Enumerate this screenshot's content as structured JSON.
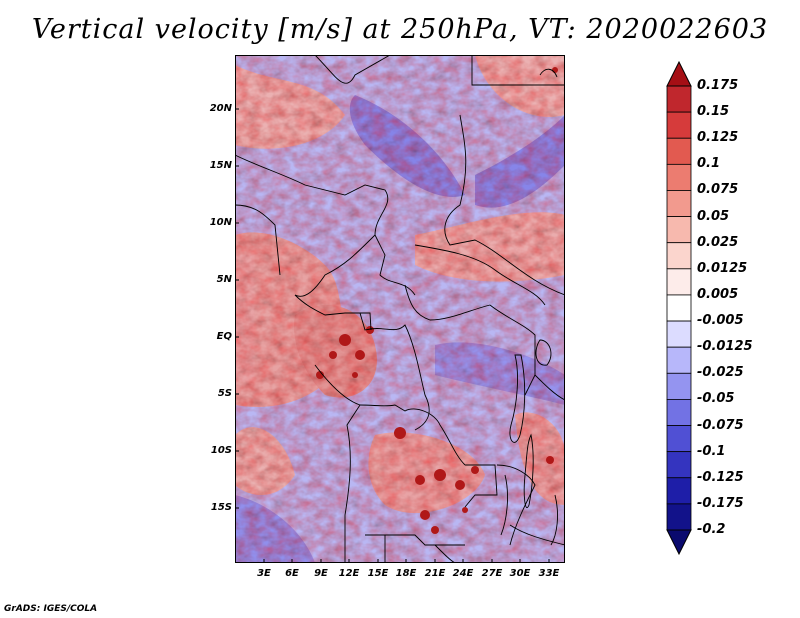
{
  "title": "Vertical velocity [m/s] at 250hPa, VT: 2020022603",
  "footer": "GrADS: IGES/COLA",
  "lat_labels": [
    "20N",
    "15N",
    "10N",
    "5N",
    "EQ",
    "5S",
    "10S",
    "15S"
  ],
  "lon_labels": [
    "3E",
    "6E",
    "9E",
    "12E",
    "15E",
    "18E",
    "21E",
    "24E",
    "27E",
    "30E",
    "33E"
  ],
  "colorbar": {
    "levels": [
      "0.175",
      "0.15",
      "0.125",
      "0.1",
      "0.075",
      "0.05",
      "0.025",
      "0.0125",
      "0.005",
      "-0.005",
      "-0.0125",
      "-0.025",
      "-0.05",
      "-0.075",
      "-0.1",
      "-0.125",
      "-0.175",
      "-0.2"
    ],
    "colors": [
      "#a50f15",
      "#c0272d",
      "#d63b3b",
      "#e25a50",
      "#ec7c70",
      "#f29a8e",
      "#f7b9ae",
      "#fbd5cd",
      "#fdecea",
      "#ffffff",
      "#dcdcff",
      "#b7b7fa",
      "#9494f0",
      "#7272e4",
      "#5050d4",
      "#3434bf",
      "#1e1ea8",
      "#12128a",
      "#0a0a6e"
    ]
  },
  "map_colors": {
    "land_base": "#b9b7f3",
    "red_patch": "#f0a096",
    "dark_red": "#b01818",
    "blue_patch": "#7a78e6",
    "border": "#000000"
  }
}
